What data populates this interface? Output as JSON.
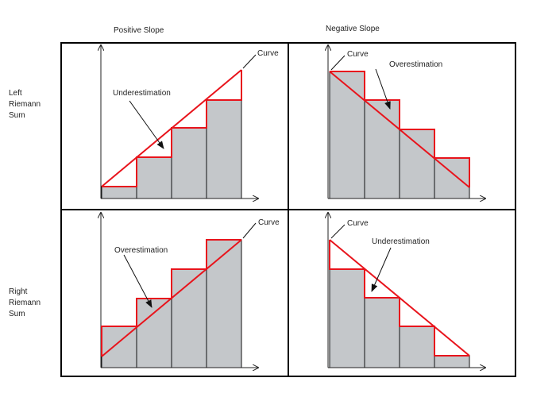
{
  "columns": {
    "positive": "Positive Slope",
    "negative": "Negative Slope"
  },
  "rows": {
    "left": [
      "Left",
      "Riemann",
      "Sum"
    ],
    "right": [
      "Right",
      "Riemann",
      "Sum"
    ]
  },
  "panels": {
    "tl": {
      "curve_label": "Curve",
      "annotation": "Underestimation"
    },
    "tr": {
      "curve_label": "Curve",
      "annotation": "Overestimation"
    },
    "bl": {
      "curve_label": "Curve",
      "annotation": "Overestimation"
    },
    "br": {
      "curve_label": "Curve",
      "annotation": "Underestimation"
    }
  },
  "colors": {
    "curve": "#e8141c",
    "bar_fill": "#c4c7ca",
    "bar_stroke": "#111111",
    "frame": "#000000",
    "axis": "#222222"
  }
}
